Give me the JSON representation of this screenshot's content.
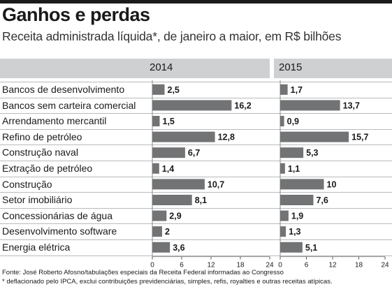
{
  "title": "Ganhos e perdas",
  "subtitle": "Receita administrada líquida*, de janeiro a maior, em R$ bilhões",
  "panels": [
    {
      "year": "2014"
    },
    {
      "year": "2015"
    }
  ],
  "source": "Fonte: José Roberto Afosno/tabulações especiais da Receita Federal informadas ao Congresso",
  "footnote": "* deflacionado pelo IPCA, exclui contribuições previdenciárias, simples, refis, royalties e outras receitas atípicas.",
  "colors": {
    "bar": "#727375",
    "header": "#cfd0d2",
    "topbar": "#1b1b1b"
  },
  "chart_data": {
    "type": "bar",
    "orientation": "horizontal",
    "title": "Ganhos e perdas",
    "subtitle": "Receita administrada líquida*, de janeiro a maior, em R$ bilhões",
    "categories": [
      "Bancos de desenvolvimento",
      "Bancos sem carteira comercial",
      "Arrendamento mercantil",
      "Refino  de petróleo",
      "Construção naval",
      "Extração de petróleo",
      "Construção",
      "Setor imobiliário",
      "Concessionárias de água",
      "Desenvolvimento software",
      "Energia elétrica"
    ],
    "series": [
      {
        "name": "2014",
        "values": [
          2.5,
          16.2,
          1.5,
          12.8,
          6.7,
          1.4,
          10.7,
          8.1,
          2.9,
          2,
          3.6
        ],
        "labels": [
          "2,5",
          "16,2",
          "1,5",
          "12,8",
          "6,7",
          "1,4",
          "10,7",
          "8,1",
          "2,9",
          "2",
          "3,6"
        ]
      },
      {
        "name": "2015",
        "values": [
          1.7,
          13.7,
          0.9,
          15.7,
          5.3,
          1.1,
          10,
          7.6,
          1.9,
          1.3,
          5.1
        ],
        "labels": [
          "1,7",
          "13,7",
          "0,9",
          "15,7",
          "5,3",
          "1,1",
          "10",
          "7,6",
          "1,9",
          "1,3",
          "5,1"
        ]
      }
    ],
    "xlim": [
      0,
      24
    ],
    "xticks": [
      "0",
      "6",
      "12",
      "18",
      "24"
    ]
  }
}
